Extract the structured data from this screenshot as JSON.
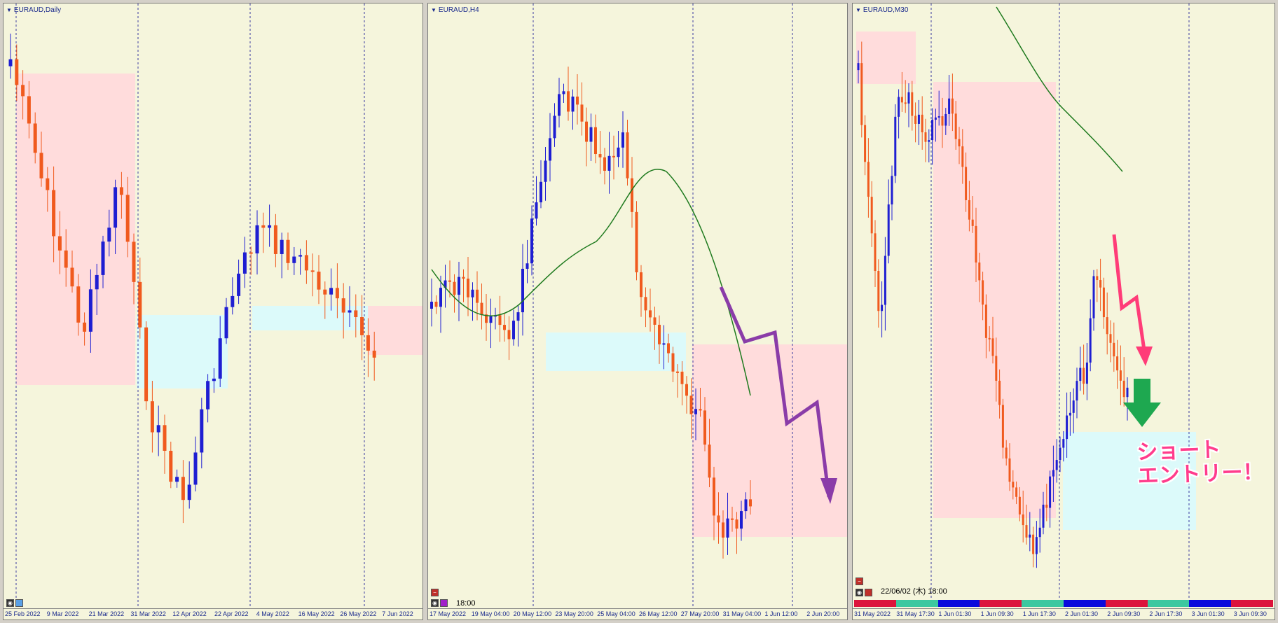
{
  "colors": {
    "bg": "#f5f5dc",
    "bull": "#1e1ed2",
    "bear": "#f05a1e",
    "zone_red": "#ffdcdc",
    "zone_cyan": "#dcfafa",
    "ma": "#1e7a1e",
    "arrow_purple": "#8a3ca8",
    "arrow_pink": "#ff3c78",
    "arrow_green": "#1ea850"
  },
  "panes": [
    {
      "title": "EURAUD,Daily",
      "dates": [
        "25 Feb 2022",
        "9 Mar 2022",
        "21 Mar 2022",
        "31 Mar 2022",
        "12 Apr 2022",
        "22 Apr 2022",
        "4 May 2022",
        "16 May 2022",
        "26 May 2022",
        "7 Jun 2022"
      ],
      "toolbar_icons": [
        "eye-icon",
        "square-icon"
      ]
    },
    {
      "title": "EURAUD,H4",
      "dates": [
        "17 May 2022",
        "19 May 04:00",
        "20 May 12:00",
        "23 May 20:00",
        "25 May 04:00",
        "26 May 12:00",
        "27 May 20:00",
        "31 May 04:00",
        "1 Jun 12:00",
        "2 Jun 20:00"
      ],
      "toolbar_icons": [
        "minus-icon",
        "eye-icon",
        "square-icon"
      ],
      "clock": "18:00"
    },
    {
      "title": "EURAUD,M30",
      "dates": [
        "31 May 2022",
        "31 May 17:30",
        "1 Jun 01:30",
        "1 Jun 09:30",
        "1 Jun 17:30",
        "2 Jun 01:30",
        "2 Jun 09:30",
        "2 Jun 17:30",
        "3 Jun 01:30",
        "3 Jun 09:30"
      ],
      "toolbar_icons": [
        "minus-icon",
        "eye-icon",
        "square-icon"
      ],
      "clock": "22/06/02 (木) 18:00",
      "session_colors": [
        "#dc143c",
        "#3cc8a0",
        "#0a0adc",
        "#dc143c",
        "#3cc8a0",
        "#0a0adc",
        "#dc143c",
        "#3cc8a0",
        "#0a0adc",
        "#dc143c"
      ]
    }
  ],
  "callout": "ショート\nエントリー！"
}
